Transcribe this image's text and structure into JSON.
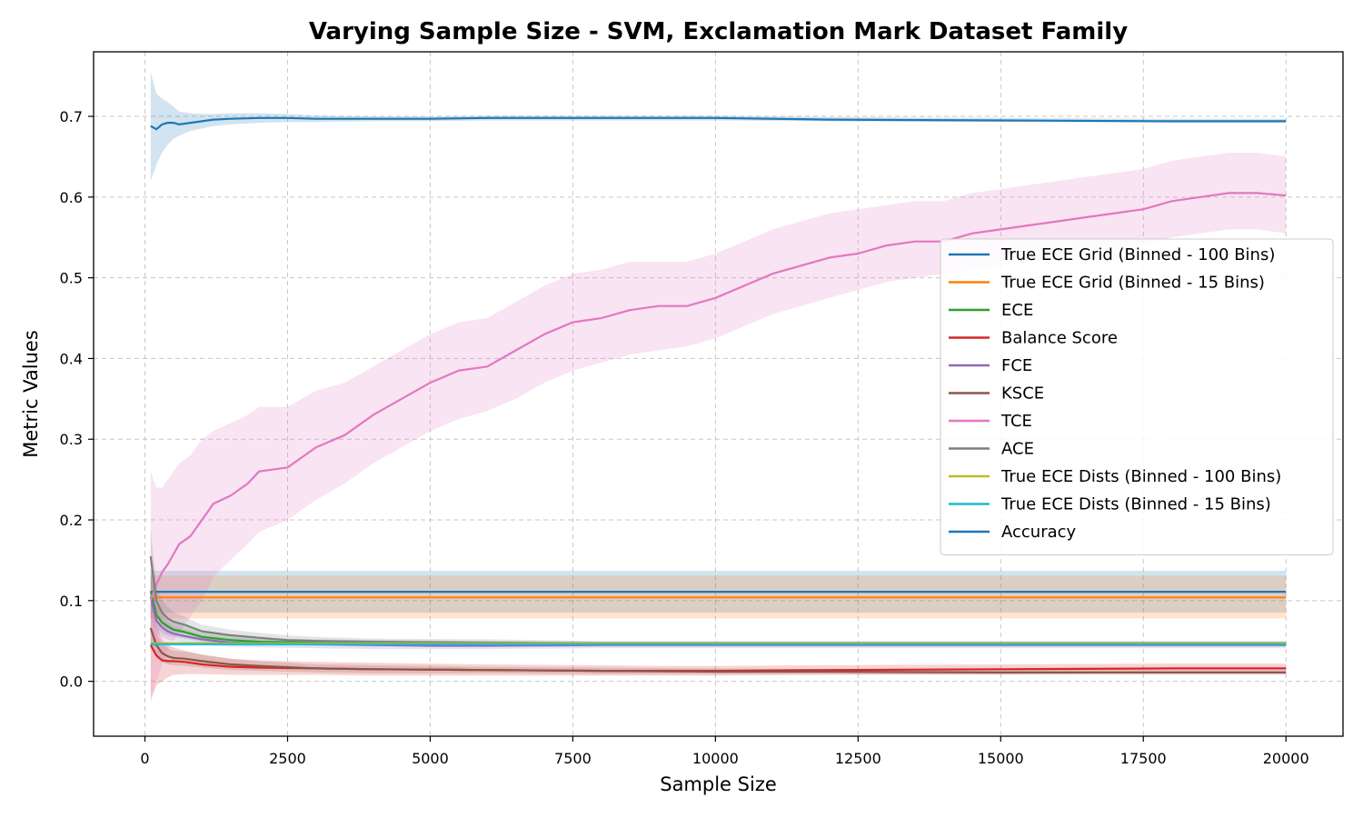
{
  "chart_data": {
    "type": "line",
    "title": "Varying Sample Size - SVM, Exclamation Mark Dataset Family",
    "xlabel": "Sample Size",
    "ylabel": "Metric Values",
    "xlim": [
      -900,
      21000
    ],
    "ylim": [
      -0.068,
      0.78
    ],
    "xticks": [
      0,
      2500,
      5000,
      7500,
      10000,
      12500,
      15000,
      17500,
      20000
    ],
    "yticks": [
      0.0,
      0.1,
      0.2,
      0.3,
      0.4,
      0.5,
      0.6,
      0.7
    ],
    "xtick_labels": [
      "0",
      "2500",
      "5000",
      "7500",
      "10000",
      "12500",
      "15000",
      "17500",
      "20000"
    ],
    "ytick_labels": [
      "0.0",
      "0.1",
      "0.2",
      "0.3",
      "0.4",
      "0.5",
      "0.6",
      "0.7"
    ],
    "grid": true,
    "legend_position": "center-right",
    "series": [
      {
        "name": "True ECE Grid (Binned - 100 Bins)",
        "color": "#1f77b4",
        "x": [
          100,
          20000
        ],
        "y": [
          0.111,
          0.111
        ],
        "lower": [
          0.085,
          0.085
        ],
        "upper": [
          0.137,
          0.137
        ]
      },
      {
        "name": "True ECE Grid (Binned - 15 Bins)",
        "color": "#ff7f0e",
        "x": [
          100,
          20000
        ],
        "y": [
          0.104,
          0.104
        ],
        "lower": [
          0.078,
          0.078
        ],
        "upper": [
          0.131,
          0.131
        ]
      },
      {
        "name": "ECE",
        "color": "#2ca02c",
        "x": [
          100,
          200,
          300,
          400,
          500,
          700,
          1000,
          1500,
          2000,
          3000,
          4000,
          6000,
          8000,
          10000,
          12000,
          15000,
          18000,
          20000
        ],
        "y": [
          0.112,
          0.082,
          0.073,
          0.068,
          0.064,
          0.061,
          0.055,
          0.051,
          0.049,
          0.048,
          0.047,
          0.046,
          0.046,
          0.046,
          0.046,
          0.046,
          0.046,
          0.046
        ],
        "lower": [
          0.085,
          0.065,
          0.06,
          0.057,
          0.055,
          0.053,
          0.049,
          0.046,
          0.045,
          0.044,
          0.043,
          0.043,
          0.043,
          0.043,
          0.043,
          0.043,
          0.043,
          0.043
        ],
        "upper": [
          0.14,
          0.1,
          0.088,
          0.08,
          0.075,
          0.07,
          0.062,
          0.056,
          0.054,
          0.052,
          0.051,
          0.05,
          0.049,
          0.049,
          0.049,
          0.049,
          0.049,
          0.049
        ]
      },
      {
        "name": "Balance Score",
        "color": "#d62728",
        "x": [
          100,
          200,
          300,
          400,
          500,
          700,
          1000,
          1500,
          2000,
          3000,
          4000,
          6000,
          8000,
          9000,
          10000,
          12000,
          15000,
          18000,
          20000
        ],
        "y": [
          0.045,
          0.032,
          0.026,
          0.025,
          0.025,
          0.024,
          0.021,
          0.018,
          0.017,
          0.016,
          0.015,
          0.014,
          0.013,
          0.013,
          0.013,
          0.014,
          0.015,
          0.016,
          0.016
        ],
        "lower": [
          -0.025,
          -0.005,
          0.0,
          0.005,
          0.008,
          0.009,
          0.009,
          0.008,
          0.008,
          0.008,
          0.007,
          0.007,
          0.007,
          0.007,
          0.007,
          0.008,
          0.009,
          0.01,
          0.01
        ],
        "upper": [
          0.115,
          0.07,
          0.052,
          0.045,
          0.042,
          0.038,
          0.033,
          0.028,
          0.026,
          0.024,
          0.023,
          0.021,
          0.02,
          0.019,
          0.019,
          0.02,
          0.021,
          0.022,
          0.022
        ]
      },
      {
        "name": "FCE",
        "color": "#9467bd",
        "x": [
          100,
          200,
          300,
          400,
          500,
          700,
          1000,
          1500,
          2000,
          3000,
          4000,
          5000,
          6000,
          8000,
          10000,
          12000,
          15000,
          18000,
          20000
        ],
        "y": [
          0.105,
          0.075,
          0.067,
          0.062,
          0.059,
          0.056,
          0.052,
          0.048,
          0.047,
          0.046,
          0.045,
          0.044,
          0.044,
          0.045,
          0.045,
          0.045,
          0.045,
          0.045,
          0.045
        ],
        "lower": [
          0.08,
          0.06,
          0.055,
          0.052,
          0.05,
          0.048,
          0.045,
          0.043,
          0.042,
          0.041,
          0.04,
          0.04,
          0.04,
          0.041,
          0.041,
          0.041,
          0.041,
          0.041,
          0.041
        ],
        "upper": [
          0.13,
          0.09,
          0.08,
          0.073,
          0.068,
          0.064,
          0.058,
          0.054,
          0.052,
          0.051,
          0.05,
          0.049,
          0.049,
          0.049,
          0.049,
          0.049,
          0.049,
          0.049,
          0.049
        ]
      },
      {
        "name": "KSCE",
        "color": "#8c564b",
        "x": [
          100,
          200,
          300,
          400,
          500,
          700,
          1000,
          1500,
          2000,
          3000,
          4000,
          6000,
          8000,
          10000,
          12000,
          15000,
          18000,
          20000
        ],
        "y": [
          0.066,
          0.045,
          0.035,
          0.031,
          0.029,
          0.028,
          0.025,
          0.021,
          0.019,
          0.016,
          0.015,
          0.014,
          0.013,
          0.012,
          0.012,
          0.011,
          0.011,
          0.011
        ],
        "lower": [
          0.045,
          0.03,
          0.024,
          0.021,
          0.02,
          0.019,
          0.017,
          0.014,
          0.013,
          0.011,
          0.01,
          0.01,
          0.009,
          0.009,
          0.009,
          0.008,
          0.008,
          0.008
        ],
        "upper": [
          0.087,
          0.06,
          0.046,
          0.041,
          0.038,
          0.037,
          0.033,
          0.028,
          0.025,
          0.021,
          0.02,
          0.018,
          0.017,
          0.016,
          0.015,
          0.014,
          0.014,
          0.014
        ]
      },
      {
        "name": "TCE",
        "color": "#e377c2",
        "x": [
          100,
          200,
          300,
          400,
          600,
          800,
          1000,
          1200,
          1500,
          1800,
          2000,
          2500,
          3000,
          3500,
          4000,
          4500,
          5000,
          5500,
          6000,
          6500,
          7000,
          7500,
          8000,
          8500,
          9000,
          9500,
          10000,
          10500,
          11000,
          11500,
          12000,
          12500,
          13000,
          13500,
          14000,
          14500,
          15000,
          15500,
          16000,
          16500,
          17000,
          17500,
          18000,
          18500,
          19000,
          19500,
          20000
        ],
        "y": [
          0.1,
          0.12,
          0.135,
          0.145,
          0.17,
          0.18,
          0.2,
          0.22,
          0.23,
          0.245,
          0.26,
          0.265,
          0.29,
          0.305,
          0.33,
          0.35,
          0.37,
          0.385,
          0.39,
          0.41,
          0.43,
          0.445,
          0.45,
          0.46,
          0.465,
          0.465,
          0.475,
          0.49,
          0.505,
          0.515,
          0.525,
          0.53,
          0.54,
          0.545,
          0.545,
          0.555,
          0.56,
          0.565,
          0.57,
          0.575,
          0.58,
          0.585,
          0.595,
          0.6,
          0.605,
          0.605,
          0.602
        ],
        "lower": [
          -0.02,
          0.0,
          0.02,
          0.04,
          0.06,
          0.08,
          0.1,
          0.13,
          0.15,
          0.17,
          0.185,
          0.2,
          0.225,
          0.245,
          0.27,
          0.29,
          0.31,
          0.325,
          0.335,
          0.35,
          0.37,
          0.385,
          0.395,
          0.405,
          0.41,
          0.415,
          0.425,
          0.44,
          0.455,
          0.465,
          0.475,
          0.485,
          0.495,
          0.5,
          0.505,
          0.51,
          0.515,
          0.52,
          0.525,
          0.53,
          0.535,
          0.54,
          0.55,
          0.555,
          0.56,
          0.56,
          0.555
        ],
        "upper": [
          0.26,
          0.24,
          0.24,
          0.25,
          0.27,
          0.28,
          0.3,
          0.31,
          0.32,
          0.33,
          0.34,
          0.34,
          0.36,
          0.37,
          0.39,
          0.41,
          0.43,
          0.445,
          0.45,
          0.47,
          0.49,
          0.505,
          0.51,
          0.52,
          0.52,
          0.52,
          0.53,
          0.545,
          0.56,
          0.57,
          0.58,
          0.585,
          0.59,
          0.595,
          0.595,
          0.605,
          0.61,
          0.615,
          0.62,
          0.625,
          0.63,
          0.635,
          0.645,
          0.65,
          0.655,
          0.655,
          0.65
        ]
      },
      {
        "name": "ACE",
        "color": "#7f7f7f",
        "x": [
          100,
          200,
          300,
          400,
          500,
          700,
          1000,
          1500,
          2000,
          2500,
          3000,
          4000,
          6000,
          8000,
          10000,
          12000,
          15000,
          18000,
          20000
        ],
        "y": [
          0.155,
          0.1,
          0.085,
          0.078,
          0.074,
          0.07,
          0.062,
          0.057,
          0.054,
          0.051,
          0.05,
          0.049,
          0.048,
          0.047,
          0.047,
          0.047,
          0.047,
          0.047,
          0.047
        ],
        "lower": [
          0.12,
          0.08,
          0.07,
          0.065,
          0.062,
          0.06,
          0.055,
          0.051,
          0.048,
          0.046,
          0.045,
          0.045,
          0.044,
          0.044,
          0.044,
          0.044,
          0.044,
          0.044,
          0.044
        ],
        "upper": [
          0.19,
          0.12,
          0.1,
          0.092,
          0.086,
          0.08,
          0.07,
          0.064,
          0.06,
          0.057,
          0.055,
          0.053,
          0.052,
          0.05,
          0.05,
          0.05,
          0.05,
          0.05,
          0.05
        ]
      },
      {
        "name": "True ECE Dists (Binned - 100 Bins)",
        "color": "#bcbd22",
        "x": [
          100,
          20000
        ],
        "y": [
          0.047,
          0.047
        ],
        "lower": [
          0.045,
          0.045
        ],
        "upper": [
          0.049,
          0.049
        ]
      },
      {
        "name": "True ECE Dists (Binned - 15 Bins)",
        "color": "#17becf",
        "x": [
          100,
          20000
        ],
        "y": [
          0.046,
          0.046
        ],
        "lower": [
          0.044,
          0.044
        ],
        "upper": [
          0.048,
          0.048
        ]
      },
      {
        "name": "Accuracy",
        "color": "#1f77b4",
        "x": [
          100,
          200,
          300,
          400,
          500,
          600,
          800,
          1000,
          1200,
          1500,
          2000,
          2500,
          3000,
          4000,
          5000,
          6000,
          8000,
          10000,
          12000,
          15000,
          18000,
          20000
        ],
        "y": [
          0.688,
          0.684,
          0.69,
          0.692,
          0.692,
          0.69,
          0.692,
          0.694,
          0.696,
          0.697,
          0.698,
          0.698,
          0.697,
          0.697,
          0.697,
          0.698,
          0.698,
          0.698,
          0.696,
          0.695,
          0.694,
          0.694
        ],
        "lower": [
          0.62,
          0.64,
          0.655,
          0.665,
          0.672,
          0.676,
          0.682,
          0.685,
          0.688,
          0.69,
          0.692,
          0.693,
          0.693,
          0.694,
          0.694,
          0.695,
          0.695,
          0.695,
          0.694,
          0.693,
          0.692,
          0.692
        ],
        "upper": [
          0.755,
          0.728,
          0.722,
          0.718,
          0.712,
          0.706,
          0.704,
          0.703,
          0.703,
          0.704,
          0.704,
          0.703,
          0.701,
          0.7,
          0.7,
          0.701,
          0.701,
          0.701,
          0.699,
          0.698,
          0.697,
          0.697
        ]
      }
    ]
  }
}
